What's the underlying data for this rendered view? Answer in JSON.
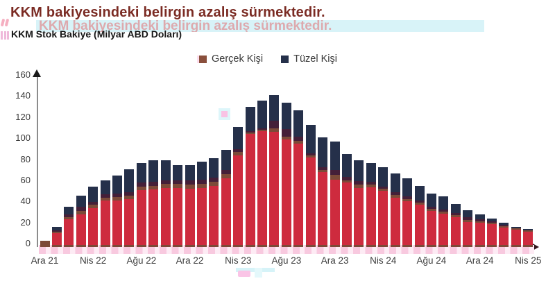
{
  "title": "KKM bakiyesindeki belirgin azalış sürmektedir.",
  "ghost_title": "KKM bakiyesindeki belirgin azalış sürmektedir.",
  "subtitle": "KKM Stok Bakiye (Milyar ABD Doları)",
  "legend": [
    {
      "label": "Gerçek Kişi",
      "color": "#8A4F3C"
    },
    {
      "label": "Tüzel Kişi",
      "color": "#25304A"
    }
  ],
  "colors": {
    "title_maroon": "#7B2B23",
    "bar_red": "#CE2B3E",
    "bar_navy": "#25304A",
    "bar_brown": "#7C4A38",
    "bar_purple": "#451F38",
    "legend_brown": "#8A4F3C",
    "axis_gray": "#8C8C8C",
    "ghost_pink": "#F9C4E2",
    "ghost_cyan": "#D8F3F8"
  },
  "chart_data": {
    "type": "bar",
    "stacked": true,
    "title": "KKM Stok Bakiye (Milyar ABD Doları)",
    "xlabel": "",
    "ylabel": "",
    "ylim": [
      0,
      160
    ],
    "yticks": [
      0,
      20,
      40,
      60,
      80,
      100,
      120,
      140,
      160
    ],
    "grid": false,
    "legend_position": "top-center",
    "x_tick_labels": [
      "Ara 21",
      "Nis 22",
      "Ağu 22",
      "Ara 22",
      "Nis 23",
      "Ağu 23",
      "Ara 23",
      "Nis 24",
      "Ağu 24",
      "Ara 24",
      "Nis 25"
    ],
    "x_tick_every": 4,
    "series": [
      {
        "name": "Gerçek Kişi",
        "values": [
          6,
          14.5,
          28,
          34,
          40,
          47,
          47.5,
          49,
          57.5,
          58,
          60,
          60,
          59,
          60,
          62,
          69,
          90,
          108.5,
          111,
          112.5,
          105,
          101,
          87,
          73,
          68.5,
          63.5,
          59,
          59,
          55,
          49.5,
          45.5,
          42,
          36,
          33.5,
          30,
          26,
          24.5,
          23,
          20,
          17.5,
          15.5
        ]
      },
      {
        "name": "Tüzel Kişi",
        "values": [
          0,
          4.5,
          10,
          15,
          17,
          16,
          20.5,
          25,
          22.5,
          24,
          22,
          18,
          19,
          21,
          22,
          23,
          24,
          24.5,
          28,
          31.5,
          32,
          29,
          29,
          31,
          31.5,
          24.5,
          23,
          21,
          21,
          20.5,
          19.5,
          16,
          15,
          14.5,
          11,
          9,
          6.5,
          4,
          3,
          1.5,
          1.5
        ]
      }
    ],
    "totals": [
      6,
      19,
      38,
      49,
      57,
      63,
      68,
      74,
      80,
      82,
      82,
      78,
      78,
      81,
      84,
      92,
      114,
      133,
      139,
      144,
      137,
      130,
      116,
      104,
      100,
      88,
      82,
      80,
      76,
      70,
      65,
      58,
      51,
      48,
      41,
      35,
      31,
      27,
      23,
      19,
      17
    ],
    "bars": [
      {
        "m": "Ara 21",
        "t": 6,
        "r": 2.2,
        "b": 6,
        "p": 6
      },
      {
        "m": "",
        "t": 19,
        "r": 13,
        "b": 14.5,
        "p": 15.5
      },
      {
        "m": "",
        "t": 38,
        "r": 26,
        "b": 28,
        "p": 31
      },
      {
        "m": "",
        "t": 49,
        "r": 31,
        "b": 34,
        "p": 38
      },
      {
        "m": "Nis 22",
        "t": 57,
        "r": 37,
        "b": 40,
        "p": 43
      },
      {
        "m": "",
        "t": 63,
        "r": 44,
        "b": 47,
        "p": 50
      },
      {
        "m": "",
        "t": 68,
        "r": 44,
        "b": 47.5,
        "p": 50.5
      },
      {
        "m": "",
        "t": 74,
        "r": 45.5,
        "b": 49,
        "p": 52
      },
      {
        "m": "Ağu 22",
        "t": 80,
        "r": 54,
        "b": 57.5,
        "p": 61
      },
      {
        "m": "",
        "t": 82,
        "r": 54.5,
        "b": 58,
        "p": 62
      },
      {
        "m": "",
        "t": 82,
        "r": 56,
        "b": 60,
        "p": 63.5
      },
      {
        "m": "",
        "t": 78,
        "r": 56,
        "b": 60,
        "p": 63.5
      },
      {
        "m": "Ara 22",
        "t": 78,
        "r": 55,
        "b": 59,
        "p": 63
      },
      {
        "m": "",
        "t": 81,
        "r": 56,
        "b": 60,
        "p": 64
      },
      {
        "m": "",
        "t": 84,
        "r": 58,
        "b": 62,
        "p": 66
      },
      {
        "m": "",
        "t": 92,
        "r": 65,
        "b": 69,
        "p": 73
      },
      {
        "m": "Nis 23",
        "t": 114,
        "r": 87,
        "b": 90,
        "p": 93
      },
      {
        "m": "",
        "t": 133,
        "r": 107,
        "b": 108.5,
        "p": 110
      },
      {
        "m": "",
        "t": 139,
        "r": 110,
        "b": 111,
        "p": 112.5
      },
      {
        "m": "",
        "t": 144,
        "r": 109,
        "b": 112.5,
        "p": 120
      },
      {
        "m": "Ağu 23",
        "t": 137,
        "r": 102,
        "b": 105,
        "p": 112
      },
      {
        "m": "",
        "t": 130,
        "r": 98,
        "b": 101,
        "p": 104.5
      },
      {
        "m": "",
        "t": 116,
        "r": 85,
        "b": 87,
        "p": 89
      },
      {
        "m": "",
        "t": 104,
        "r": 71,
        "b": 73,
        "p": 75.5
      },
      {
        "m": "Ara 23",
        "t": 100,
        "r": 64,
        "b": 68.5,
        "p": 73
      },
      {
        "m": "",
        "t": 88,
        "r": 61,
        "b": 63.5,
        "p": 66.5
      },
      {
        "m": "",
        "t": 82,
        "r": 56,
        "b": 59,
        "p": 62.5
      },
      {
        "m": "",
        "t": 80,
        "r": 56.5,
        "b": 59,
        "p": 62
      },
      {
        "m": "Nis 24",
        "t": 76,
        "r": 53,
        "b": 55,
        "p": 57.5
      },
      {
        "m": "",
        "t": 70,
        "r": 47,
        "b": 49.5,
        "p": 52
      },
      {
        "m": "",
        "t": 65,
        "r": 43.5,
        "b": 45.5,
        "p": 48
      },
      {
        "m": "",
        "t": 58,
        "r": 40,
        "b": 42,
        "p": 44
      },
      {
        "m": "Ağu 24",
        "t": 51,
        "r": 34,
        "b": 36,
        "p": 38.5
      },
      {
        "m": "",
        "t": 48,
        "r": 31.5,
        "b": 33.5,
        "p": 35.5
      },
      {
        "m": "",
        "t": 41,
        "r": 28,
        "b": 30,
        "p": 32
      },
      {
        "m": "",
        "t": 35,
        "r": 24,
        "b": 26,
        "p": 28
      },
      {
        "m": "Ara 24",
        "t": 31,
        "r": 23,
        "b": 24.5,
        "p": 26.5
      },
      {
        "m": "",
        "t": 27,
        "r": 21.5,
        "b": 23,
        "p": 24.5
      },
      {
        "m": "",
        "t": 23,
        "r": 18.5,
        "b": 20,
        "p": 21
      },
      {
        "m": "",
        "t": 19,
        "r": 16.5,
        "b": 17.5,
        "p": 18
      },
      {
        "m": "Nis 25",
        "t": 17,
        "r": 14.3,
        "b": 15.5,
        "p": 15.5
      }
    ]
  }
}
